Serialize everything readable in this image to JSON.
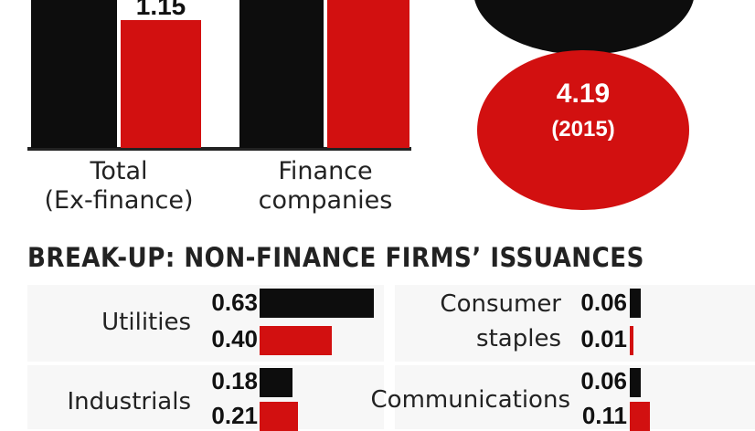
{
  "colors": {
    "series_a": "#0d0d0d",
    "series_b": "#d21010"
  },
  "chart_data": [
    {
      "type": "bar",
      "categories": [
        "Total\n(Ex-finance)",
        "Finance\ncompanies"
      ],
      "series": [
        {
          "values": [
            null,
            null
          ],
          "color": "#0d0d0d"
        },
        {
          "values": [
            1.15,
            null
          ],
          "color": "#d21010"
        }
      ],
      "data_labels": [
        "1.15"
      ]
    },
    {
      "type": "bubble",
      "value_label": "4.19",
      "year_label": "(2015)"
    },
    {
      "type": "bar",
      "orientation": "horizontal",
      "title": "BREAK-UP: NON-FINANCE FIRMS’ ISSUANCES",
      "sectors": [
        {
          "name": "Utilities",
          "values": [
            0.63,
            0.4
          ],
          "labels": [
            "0.63",
            "0.40"
          ]
        },
        {
          "name": "Consumer\nstaples",
          "values": [
            0.06,
            0.01
          ],
          "labels": [
            "0.06",
            "0.01"
          ]
        },
        {
          "name": "Industrials",
          "values": [
            0.18,
            0.21
          ],
          "labels": [
            "0.18",
            "0.21"
          ]
        },
        {
          "name": "Communications",
          "values": [
            0.06,
            0.11
          ],
          "labels": [
            "0.06",
            "0.11"
          ]
        }
      ]
    }
  ],
  "labels": {
    "cat0_line1": "Total",
    "cat0_line2": "(Ex-finance)",
    "cat1_line1": "Finance",
    "cat1_line2": "companies",
    "top_value": "1.15",
    "bubble_value": "4.19",
    "bubble_year": "(2015)",
    "breakup_title": "BREAK-UP: NON-FINANCE FIRMS’ ISSUANCES",
    "utilities": "Utilities",
    "consumer_1": "Consumer",
    "consumer_2": "staples",
    "industrials": "Industrials",
    "communications": "Communications"
  }
}
